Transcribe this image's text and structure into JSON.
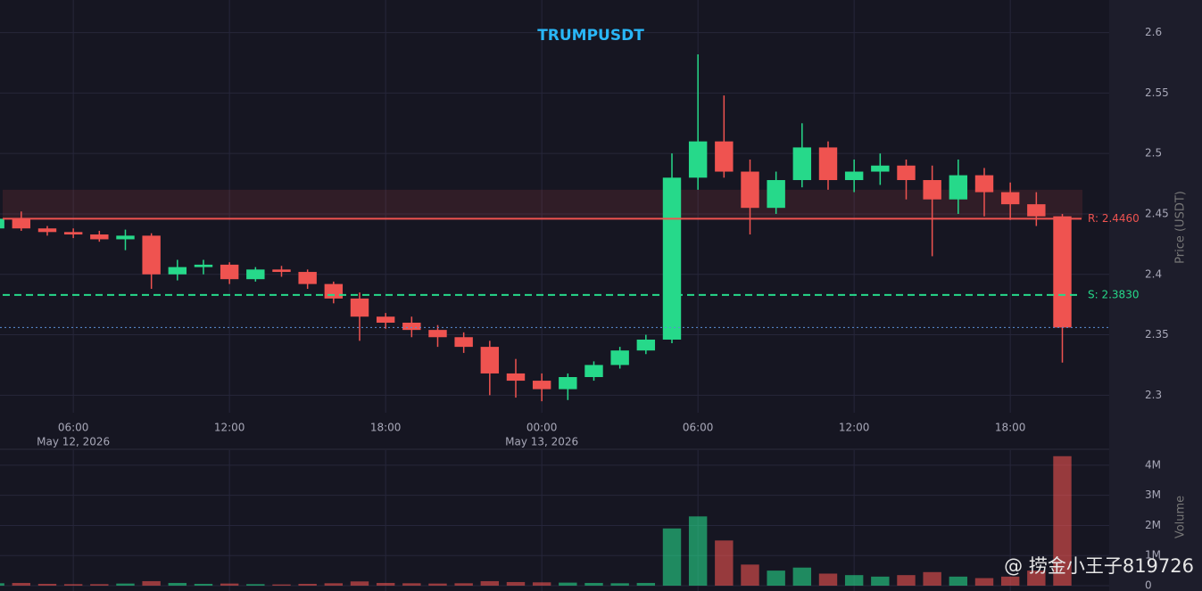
{
  "chart_data": {
    "type": "candlestick",
    "title": "TRUMPUSDT",
    "y_label": "Price (USDT)",
    "y2_label": "Volume",
    "watermark": "@ 捞金小王子819726",
    "up_color": "#26d98a",
    "down_color": "#ef5350",
    "grid": true,
    "xlim": [
      "2026-05-12 03:11",
      "2026-05-13 21:48"
    ],
    "xticks": [
      {
        "value": "2026-05-12 06:00",
        "label": "06:00",
        "date": "May 12, 2026"
      },
      {
        "value": "2026-05-12 12:00",
        "label": "12:00"
      },
      {
        "value": "2026-05-12 18:00",
        "label": "18:00"
      },
      {
        "value": "2026-05-13 00:00",
        "label": "00:00",
        "date": "May 13, 2026"
      },
      {
        "value": "2026-05-13 06:00",
        "label": "06:00"
      },
      {
        "value": "2026-05-13 12:00",
        "label": "12:00"
      },
      {
        "value": "2026-05-13 18:00",
        "label": "18:00"
      }
    ],
    "ylim": [
      2.256,
      2.627
    ],
    "yticks": [
      2.3,
      2.35,
      2.4,
      2.45,
      2.5,
      2.55,
      2.6
    ],
    "y2lim": [
      0,
      4500000
    ],
    "y2ticks": [
      0,
      {
        "value": 1000000,
        "label": "1M"
      },
      {
        "value": 2000000,
        "label": "2M"
      },
      {
        "value": 3000000,
        "label": "3M"
      },
      {
        "value": 4000000,
        "label": "4M"
      }
    ],
    "zone": [
      2.446,
      2.47
    ],
    "levels": [
      {
        "label": "R: 2.4460",
        "value": 2.446,
        "color": "#ef5350",
        "style": "solid"
      },
      {
        "label": "S: 2.3830",
        "value": 2.383,
        "color": "#26d98a",
        "style": "dashed"
      }
    ],
    "last_price": 2.356,
    "x": [
      "2026-05-12 03:00",
      "2026-05-12 04:00",
      "2026-05-12 05:00",
      "2026-05-12 06:00",
      "2026-05-12 07:00",
      "2026-05-12 08:00",
      "2026-05-12 09:00",
      "2026-05-12 10:00",
      "2026-05-12 11:00",
      "2026-05-12 12:00",
      "2026-05-12 13:00",
      "2026-05-12 14:00",
      "2026-05-12 15:00",
      "2026-05-12 16:00",
      "2026-05-12 17:00",
      "2026-05-12 18:00",
      "2026-05-12 19:00",
      "2026-05-12 20:00",
      "2026-05-12 21:00",
      "2026-05-12 22:00",
      "2026-05-12 23:00",
      "2026-05-13 00:00",
      "2026-05-13 01:00",
      "2026-05-13 02:00",
      "2026-05-13 03:00",
      "2026-05-13 04:00",
      "2026-05-13 05:00",
      "2026-05-13 06:00",
      "2026-05-13 07:00",
      "2026-05-13 08:00",
      "2026-05-13 09:00",
      "2026-05-13 10:00",
      "2026-05-13 11:00",
      "2026-05-13 12:00",
      "2026-05-13 13:00",
      "2026-05-13 14:00",
      "2026-05-13 15:00",
      "2026-05-13 16:00",
      "2026-05-13 17:00",
      "2026-05-13 18:00",
      "2026-05-13 19:00",
      "2026-05-13 20:00"
    ],
    "open": [
      2.438,
      2.446,
      2.438,
      2.435,
      2.433,
      2.429,
      2.432,
      2.4,
      2.406,
      2.408,
      2.396,
      2.404,
      2.402,
      2.392,
      2.38,
      2.365,
      2.36,
      2.354,
      2.348,
      2.34,
      2.318,
      2.312,
      2.305,
      2.315,
      2.325,
      2.337,
      2.346,
      2.48,
      2.51,
      2.485,
      2.455,
      2.478,
      2.505,
      2.478,
      2.485,
      2.49,
      2.478,
      2.462,
      2.482,
      2.468,
      2.458,
      2.448
    ],
    "high": [
      2.449,
      2.452,
      2.44,
      2.438,
      2.436,
      2.437,
      2.434,
      2.412,
      2.412,
      2.41,
      2.406,
      2.407,
      2.404,
      2.394,
      2.385,
      2.368,
      2.365,
      2.358,
      2.352,
      2.345,
      2.33,
      2.318,
      2.318,
      2.328,
      2.34,
      2.35,
      2.5,
      2.582,
      2.548,
      2.495,
      2.485,
      2.525,
      2.51,
      2.495,
      2.5,
      2.495,
      2.49,
      2.495,
      2.488,
      2.476,
      2.468,
      2.45
    ],
    "low": [
      2.435,
      2.436,
      2.432,
      2.43,
      2.427,
      2.42,
      2.388,
      2.395,
      2.4,
      2.392,
      2.394,
      2.398,
      2.388,
      2.376,
      2.345,
      2.355,
      2.348,
      2.34,
      2.335,
      2.3,
      2.298,
      2.295,
      2.296,
      2.312,
      2.322,
      2.334,
      2.343,
      2.47,
      2.48,
      2.433,
      2.45,
      2.472,
      2.47,
      2.468,
      2.474,
      2.462,
      2.415,
      2.45,
      2.448,
      2.445,
      2.44,
      2.327
    ],
    "close": [
      2.446,
      2.438,
      2.435,
      2.433,
      2.429,
      2.432,
      2.4,
      2.406,
      2.408,
      2.396,
      2.404,
      2.402,
      2.392,
      2.38,
      2.365,
      2.36,
      2.354,
      2.348,
      2.34,
      2.318,
      2.312,
      2.305,
      2.315,
      2.325,
      2.337,
      2.346,
      2.48,
      2.51,
      2.485,
      2.455,
      2.478,
      2.505,
      2.478,
      2.485,
      2.49,
      2.478,
      2.462,
      2.482,
      2.468,
      2.458,
      2.448,
      2.356
    ],
    "volume": [
      80000,
      90000,
      60000,
      50000,
      50000,
      70000,
      150000,
      90000,
      60000,
      70000,
      50000,
      40000,
      60000,
      80000,
      140000,
      90000,
      80000,
      70000,
      80000,
      150000,
      120000,
      110000,
      100000,
      90000,
      80000,
      90000,
      1900000,
      2300000,
      1500000,
      700000,
      500000,
      600000,
      400000,
      350000,
      300000,
      350000,
      450000,
      300000,
      250000,
      300000,
      500000,
      4300000
    ]
  }
}
